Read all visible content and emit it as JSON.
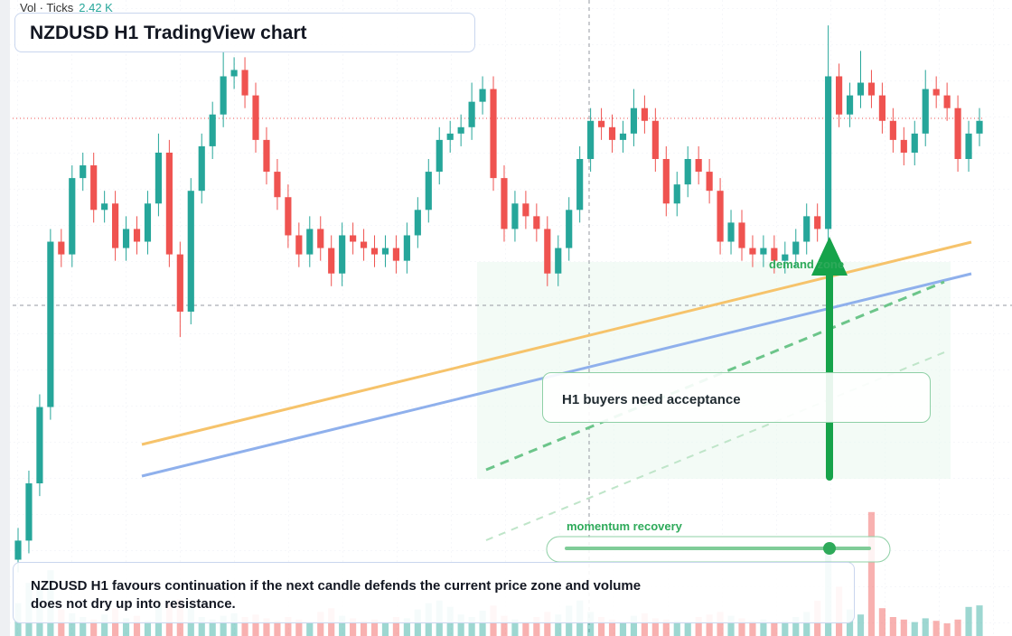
{
  "chart_data": {
    "type": "candlestick",
    "title": "NZDUSD H1 TradingView chart",
    "volume_legend": "Vol · Ticks",
    "annotations": {
      "zone": "demand zone",
      "callout": "H1 buyers need acceptance",
      "slider": "momentum recovery",
      "note": "NZDUSD H1 favours continuation if the next candle defends the current price zone and volume does not dry up into resistance."
    },
    "up_color": "#26a69a",
    "down_color": "#ef5350",
    "ylim": [
      0,
      100
    ],
    "volume_ylim": [
      0,
      10000
    ],
    "open": [
      12,
      15,
      24,
      36,
      62,
      60,
      72,
      74,
      67,
      68,
      61,
      64,
      62,
      68,
      76,
      60,
      51,
      70,
      77,
      82,
      88,
      89,
      85,
      78,
      73,
      69,
      63,
      60,
      64,
      61,
      57,
      63,
      62,
      61,
      60,
      61,
      59,
      63,
      67,
      73,
      78,
      79,
      80,
      84,
      86,
      72,
      64,
      68,
      66,
      64,
      57,
      61,
      67,
      75,
      81,
      80,
      78,
      79,
      83,
      81,
      75,
      68,
      71,
      75,
      73,
      70,
      62,
      65,
      61,
      60,
      61,
      59,
      60,
      62,
      66,
      64,
      88,
      82,
      85,
      87,
      85,
      81,
      78,
      76,
      79,
      86,
      85,
      83,
      75,
      79
    ],
    "high": [
      17,
      26,
      38,
      64,
      64,
      74,
      76,
      76,
      70,
      70,
      66,
      66,
      70,
      79,
      78,
      62,
      72,
      79,
      84,
      92,
      91,
      91,
      87,
      80,
      75,
      71,
      65,
      66,
      66,
      63,
      65,
      65,
      64,
      63,
      63,
      63,
      65,
      69,
      75,
      80,
      81,
      82,
      87,
      88,
      88,
      74,
      70,
      70,
      68,
      66,
      63,
      69,
      77,
      83,
      83,
      82,
      81,
      86,
      85,
      83,
      77,
      73,
      77,
      77,
      75,
      72,
      67,
      67,
      63,
      63,
      63,
      62,
      64,
      68,
      68,
      96,
      90,
      87,
      92,
      89,
      87,
      83,
      80,
      81,
      89,
      88,
      87,
      85,
      81,
      83
    ],
    "low": [
      10,
      13,
      22,
      34,
      58,
      58,
      70,
      65,
      65,
      59,
      59,
      60,
      60,
      66,
      58,
      47,
      49,
      68,
      75,
      80,
      86,
      83,
      76,
      71,
      67,
      61,
      58,
      58,
      59,
      55,
      55,
      60,
      59,
      58,
      58,
      57,
      57,
      61,
      65,
      71,
      76,
      77,
      78,
      82,
      70,
      62,
      62,
      64,
      62,
      55,
      55,
      59,
      65,
      73,
      78,
      76,
      76,
      77,
      79,
      73,
      66,
      66,
      69,
      71,
      68,
      60,
      60,
      59,
      58,
      58,
      57,
      57,
      58,
      60,
      62,
      62,
      80,
      80,
      83,
      83,
      79,
      76,
      74,
      74,
      77,
      83,
      81,
      73,
      73,
      77
    ],
    "close": [
      15,
      24,
      36,
      62,
      60,
      72,
      74,
      67,
      68,
      61,
      64,
      62,
      68,
      76,
      60,
      51,
      70,
      77,
      82,
      88,
      89,
      85,
      78,
      73,
      69,
      63,
      60,
      64,
      61,
      57,
      63,
      62,
      61,
      60,
      61,
      59,
      63,
      67,
      73,
      78,
      79,
      80,
      84,
      86,
      72,
      64,
      68,
      66,
      64,
      57,
      61,
      67,
      75,
      81,
      80,
      78,
      79,
      83,
      81,
      75,
      68,
      71,
      75,
      73,
      70,
      62,
      65,
      61,
      60,
      61,
      59,
      60,
      62,
      66,
      64,
      88,
      82,
      85,
      87,
      85,
      81,
      78,
      76,
      79,
      86,
      85,
      83,
      75,
      79,
      81
    ],
    "volume": [
      2600,
      4200,
      3800,
      5200,
      2100,
      1800,
      1500,
      1300,
      1700,
      2200,
      1400,
      1600,
      1200,
      2400,
      2600,
      2900,
      2300,
      1500,
      1300,
      1600,
      1800,
      1500,
      1700,
      1400,
      1200,
      1500,
      1300,
      1100,
      1900,
      2200,
      1600,
      1400,
      1200,
      1300,
      1100,
      1500,
      1400,
      2100,
      2600,
      2800,
      2300,
      1700,
      1500,
      2000,
      2400,
      1600,
      1300,
      1100,
      1500,
      1900,
      1700,
      2400,
      2800,
      1900,
      1500,
      1300,
      1100,
      1600,
      1800,
      1400,
      1300,
      1200,
      1100,
      1500,
      1700,
      1900,
      1600,
      1400,
      1200,
      1300,
      1100,
      1200,
      1500,
      1900,
      2800,
      6500,
      3900,
      2100,
      1700,
      9800,
      2200,
      1500,
      1300,
      1100,
      1400,
      1200,
      1000,
      1300,
      2300,
      2420
    ],
    "volume_value_labels": [
      null,
      null,
      null,
      null,
      null,
      null,
      null,
      null,
      null,
      null,
      null,
      null,
      null,
      null,
      null,
      null,
      null,
      null,
      null,
      null,
      null,
      null,
      null,
      null,
      null,
      null,
      null,
      null,
      null,
      null,
      null,
      null,
      null,
      null,
      null,
      null,
      null,
      null,
      null,
      null,
      null,
      null,
      null,
      null,
      null,
      null,
      null,
      null,
      null,
      null,
      null,
      null,
      null,
      null,
      null,
      null,
      null,
      null,
      null,
      null,
      null,
      null,
      null,
      null,
      null,
      null,
      null,
      null,
      null,
      null,
      null,
      null,
      null,
      null,
      null,
      null,
      null,
      null,
      null,
      null,
      null,
      null,
      null,
      null,
      null,
      null,
      null,
      null,
      null,
      "2.42 K"
    ]
  }
}
